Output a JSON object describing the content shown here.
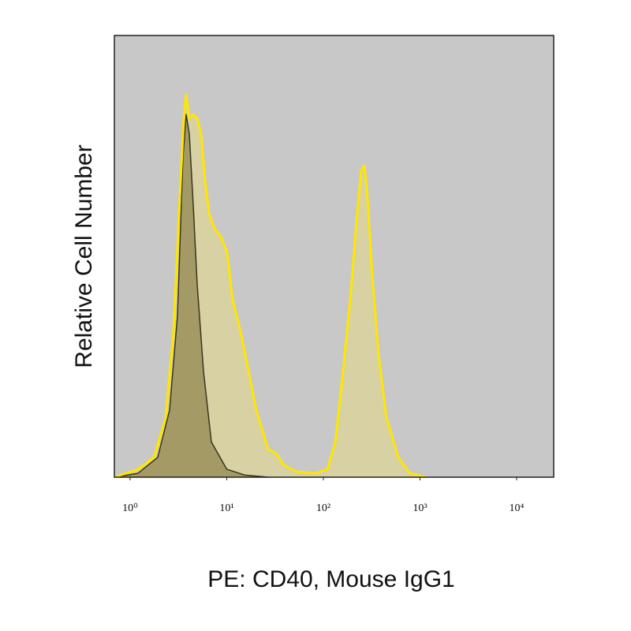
{
  "chart_data": {
    "type": "histogram-overlay",
    "x_label": "PE: CD40, Mouse IgG1",
    "y_label": "Relative Cell Number",
    "xscale": "log",
    "xlim": [
      0.687,
      24200
    ],
    "xticks": [
      {
        "value": 1,
        "label": "10⁰"
      },
      {
        "value": 10,
        "label": "10¹"
      },
      {
        "value": 100,
        "label": "10²"
      },
      {
        "value": 1000,
        "label": "10³"
      },
      {
        "value": 10000,
        "label": "10⁴"
      }
    ],
    "ylim": [
      0,
      100
    ],
    "background": "#c8c8c8",
    "series": [
      {
        "color": "#ffe600",
        "fill": "rgba(232,220,120,0.45)",
        "x": [
          0.687,
          1.21,
          1.76,
          2.33,
          2.81,
          3.27,
          3.59,
          3.8,
          4.1,
          4.5,
          4.94,
          5.43,
          5.97,
          6.55,
          7.47,
          8.69,
          10.1,
          11.5,
          13.9,
          16.8,
          20.2,
          26.8,
          32.4,
          39.1,
          51.8,
          82.8,
          110,
          133,
          160,
          193,
          220,
          247,
          266,
          286,
          321,
          373,
          450,
          597,
          791,
          1151
        ],
        "values": [
          0,
          1.8,
          4.5,
          13.4,
          33.0,
          63.4,
          81.3,
          86.6,
          81.3,
          82.1,
          81.3,
          77.7,
          67.0,
          59.8,
          56.3,
          54.5,
          50.9,
          40.2,
          33.0,
          24.1,
          15.2,
          6.3,
          5.4,
          2.7,
          1.3,
          0.9,
          1.8,
          8.0,
          24.1,
          42.0,
          58.0,
          69.6,
          70.5,
          63.4,
          45.5,
          27.7,
          13.4,
          4.5,
          0.9,
          0
        ]
      },
      {
        "color": "#3a3520",
        "fill": "rgba(120,110,50,0.55)",
        "x": [
          0.687,
          1.21,
          1.93,
          2.56,
          3.09,
          3.52,
          3.8,
          4.1,
          4.5,
          4.94,
          5.74,
          6.93,
          10,
          15.3,
          26.8
        ],
        "values": [
          0,
          0.9,
          4.5,
          15.2,
          36.6,
          72.3,
          82.1,
          77.7,
          61.6,
          43.8,
          24.1,
          8.0,
          1.8,
          0.5,
          0
        ]
      }
    ]
  }
}
